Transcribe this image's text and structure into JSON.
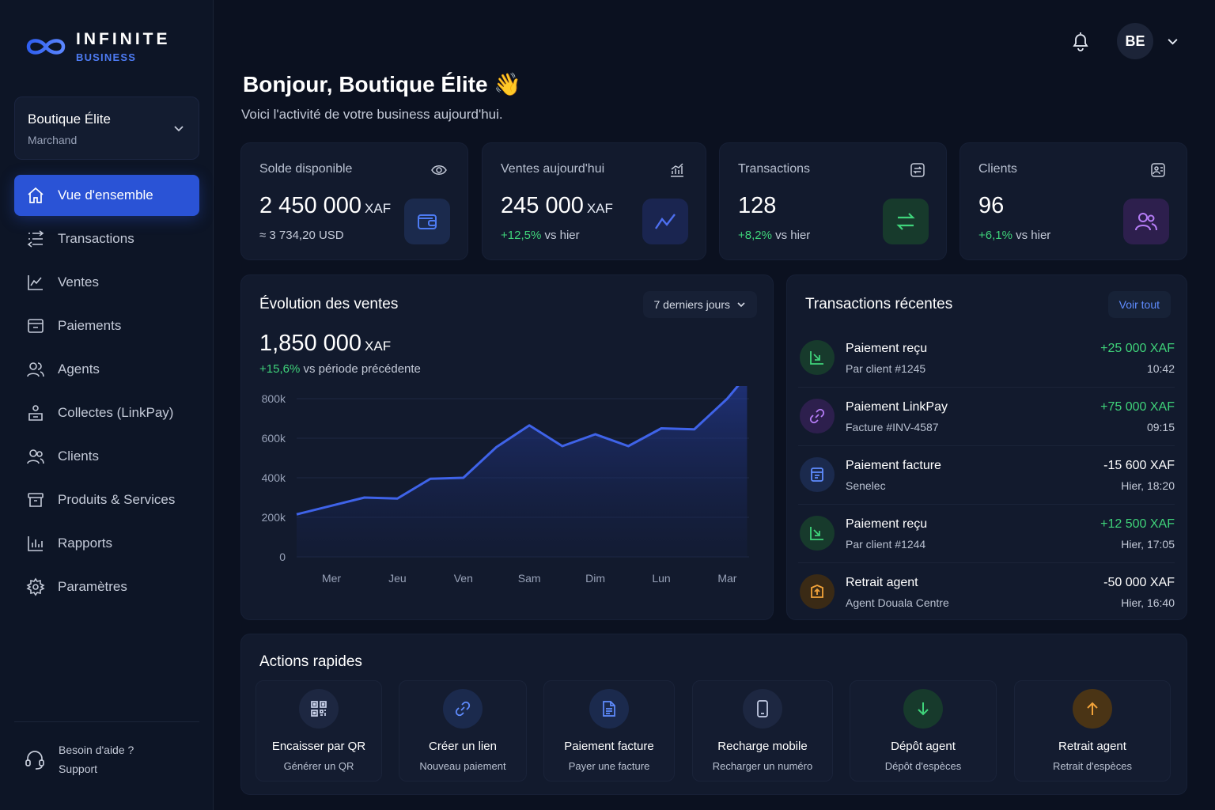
{
  "brand": {
    "name": "INFINITE",
    "sub": "BUSINESS",
    "icon": "infinity-logo-icon"
  },
  "account": {
    "name": "Boutique Élite",
    "role": "Marchand"
  },
  "nav": [
    {
      "label": "Vue d'ensemble",
      "icon": "home-icon",
      "active": true
    },
    {
      "label": "Transactions",
      "icon": "list-icon"
    },
    {
      "label": "Ventes",
      "icon": "line-chart-icon"
    },
    {
      "label": "Paiements",
      "icon": "payment-box-icon"
    },
    {
      "label": "Agents",
      "icon": "agents-icon"
    },
    {
      "label": "Collectes (LinkPay)",
      "icon": "collect-icon"
    },
    {
      "label": "Clients",
      "icon": "users-icon"
    },
    {
      "label": "Produits & Services",
      "icon": "products-icon"
    },
    {
      "label": "Rapports",
      "icon": "bar-chart-icon"
    },
    {
      "label": "Paramètres",
      "icon": "gear-icon"
    }
  ],
  "help": {
    "title": "Besoin d'aide ?",
    "sub": "Support",
    "icon": "headset-icon"
  },
  "user": {
    "initials": "BE"
  },
  "greeting": {
    "title": "Bonjour, Boutique Élite 👋",
    "subtitle": "Voici l'activité de votre business aujourd'hui."
  },
  "stats": [
    {
      "title": "Solde disponible",
      "value": "2 450 000",
      "unit": "XAF",
      "sub_pos": "",
      "sub": "≈ 3 734,20 USD",
      "color": "#4d7bf3",
      "bg": "#1b2a4d"
    },
    {
      "title": "Ventes aujourd'hui",
      "value": "245 000",
      "unit": "XAF",
      "sub_pos": "+12,5%",
      "sub": " vs hier",
      "color": "#4d6ff0",
      "bg": "#1a2550"
    },
    {
      "title": "Transactions",
      "value": "128",
      "unit": "",
      "sub_pos": "+8,2%",
      "sub": " vs hier",
      "color": "#3fd37a",
      "bg": "#173a2c"
    },
    {
      "title": "Clients",
      "value": "96",
      "unit": "",
      "sub_pos": "+6,1%",
      "sub": " vs hier",
      "color": "#b47cf5",
      "bg": "#2d1f4d"
    }
  ],
  "sales": {
    "title": "Évolution des ventes",
    "range": "7 derniers jours",
    "total": "1,850 000",
    "unit": "XAF",
    "delta": "+15,6%",
    "delta_text": " vs période précédente"
  },
  "chart_data": {
    "type": "area",
    "categories": [
      "Mer",
      "Jeu",
      "Ven",
      "Sam",
      "Dim",
      "Lun",
      "Mar"
    ],
    "x": [
      0,
      0.5,
      1,
      1.5,
      2,
      2.5,
      3,
      3.5,
      4,
      4.5,
      5,
      5.5,
      6,
      6.3
    ],
    "values": [
      215,
      300,
      295,
      395,
      400,
      555,
      665,
      560,
      620,
      560,
      650,
      645,
      800,
      920
    ],
    "ylim": [
      0,
      800
    ],
    "yticks": [
      0,
      200,
      400,
      600,
      800
    ],
    "yticklabels": [
      "0",
      "200k",
      "400k",
      "600k",
      "800k"
    ],
    "line_color": "#3f63e8",
    "grid": true
  },
  "recent": {
    "title": "Transactions récentes",
    "view_all": "Voir tout",
    "items": [
      {
        "title": "Paiement reçu",
        "sub": "Par client #1245",
        "amount": "+25 000 XAF",
        "time": "10:42",
        "positive": true,
        "icon": "receive-icon",
        "color": "#3fd37a",
        "bg": "#173a2c"
      },
      {
        "title": "Paiement LinkPay",
        "sub": "Facture #INV-4587",
        "amount": "+75 000 XAF",
        "time": "09:15",
        "positive": true,
        "icon": "link-icon",
        "color": "#b47cf5",
        "bg": "#2d1f4d"
      },
      {
        "title": "Paiement facture",
        "sub": "Senelec",
        "amount": "-15 600 XAF",
        "time": "Hier, 18:20",
        "positive": false,
        "icon": "invoice-icon",
        "color": "#5f8cff",
        "bg": "#1b2a4d"
      },
      {
        "title": "Paiement reçu",
        "sub": "Par client #1244",
        "amount": "+12 500 XAF",
        "time": "Hier, 17:05",
        "positive": true,
        "icon": "receive-icon",
        "color": "#3fd37a",
        "bg": "#173a2c"
      },
      {
        "title": "Retrait agent",
        "sub": "Agent Douala Centre",
        "amount": "-50 000 XAF",
        "time": "Hier, 16:40",
        "positive": false,
        "icon": "withdraw-box-icon",
        "color": "#f2a33a",
        "bg": "#3a2a15"
      }
    ]
  },
  "quick": {
    "title": "Actions rapides",
    "items": [
      {
        "label": "Encaisser par QR",
        "sub": "Générer un QR",
        "icon": "qr-icon",
        "color": "#c9d2ea",
        "bg": "#1d2741"
      },
      {
        "label": "Créer un lien",
        "sub": "Nouveau paiement",
        "icon": "link-icon",
        "color": "#5f8cff",
        "bg": "#1b2a4d"
      },
      {
        "label": "Paiement facture",
        "sub": "Payer une facture",
        "icon": "invoice-icon",
        "color": "#5f8cff",
        "bg": "#1b2a4d"
      },
      {
        "label": "Recharge mobile",
        "sub": "Recharger un numéro",
        "icon": "phone-icon",
        "color": "#c9d2ea",
        "bg": "#1d2741"
      },
      {
        "label": "Dépôt agent",
        "sub": "Dépôt d'espèces",
        "icon": "arrow-down-icon",
        "color": "#3fd37a",
        "bg": "#173a2c"
      },
      {
        "label": "Retrait agent",
        "sub": "Retrait d'espèces",
        "icon": "arrow-up-icon",
        "color": "#f2a33a",
        "bg": "#4a3415"
      }
    ]
  }
}
